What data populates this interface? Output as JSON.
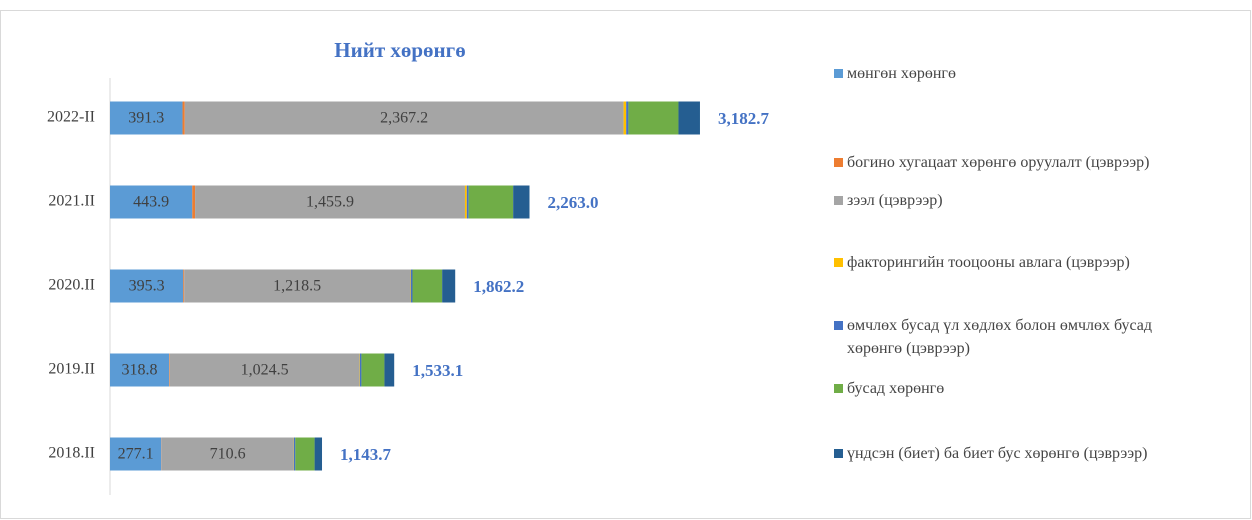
{
  "chart_data": {
    "type": "stacked_barh",
    "title": "Нийт хөрөнгө",
    "categories": [
      "2022-II",
      "2021.II",
      "2020.II",
      "2019.II",
      "2018.II"
    ],
    "series": [
      {
        "name": "мөнгөн хөрөнгө",
        "color": "#5b9bd5",
        "values": [
          391.3,
          443.9,
          395.3,
          318.8,
          277.1
        ],
        "labels": true
      },
      {
        "name": "богино хугацаат хөрөнгө оруулалт (цэврээр)",
        "color": "#ed7d31",
        "values": [
          12,
          15,
          5,
          3,
          2
        ]
      },
      {
        "name": "зээл (цэврээр)",
        "color": "#a5a5a5",
        "values": [
          2367.2,
          1455.9,
          1218.5,
          1024.5,
          710.6
        ],
        "value_labels": [
          "2,367.2",
          "1,455.9",
          "1,218.5",
          "1,024.5",
          "710.6"
        ],
        "labels": true
      },
      {
        "name": "факторингийн тооцооны авлага (цэврээр)",
        "color": "#ffc000",
        "values": [
          14,
          10,
          3,
          2,
          2
        ]
      },
      {
        "name": "өмчлөх бусад үл хөдлөх болон өмчлөх бусад хөрөнгө (цэврээр)",
        "color": "#4472c4",
        "values": [
          12,
          10,
          10,
          8,
          8
        ]
      },
      {
        "name": "бусад хөрөнгө",
        "color": "#70ad47",
        "values": [
          270,
          240,
          160,
          124,
          104
        ]
      },
      {
        "name": "үндсэн (биет) ба биет бус хөрөнгө (цэврээр)",
        "color": "#255e91",
        "values": [
          116,
          88.2,
          70.4,
          52.8,
          40
        ]
      }
    ],
    "totals": [
      3182.7,
      2263.0,
      1862.2,
      1533.1,
      1143.7
    ],
    "total_labels": [
      "3,182.7",
      "2,263.0",
      "1,862.2",
      "1,533.1",
      "1,143.7"
    ],
    "legend": "right"
  }
}
